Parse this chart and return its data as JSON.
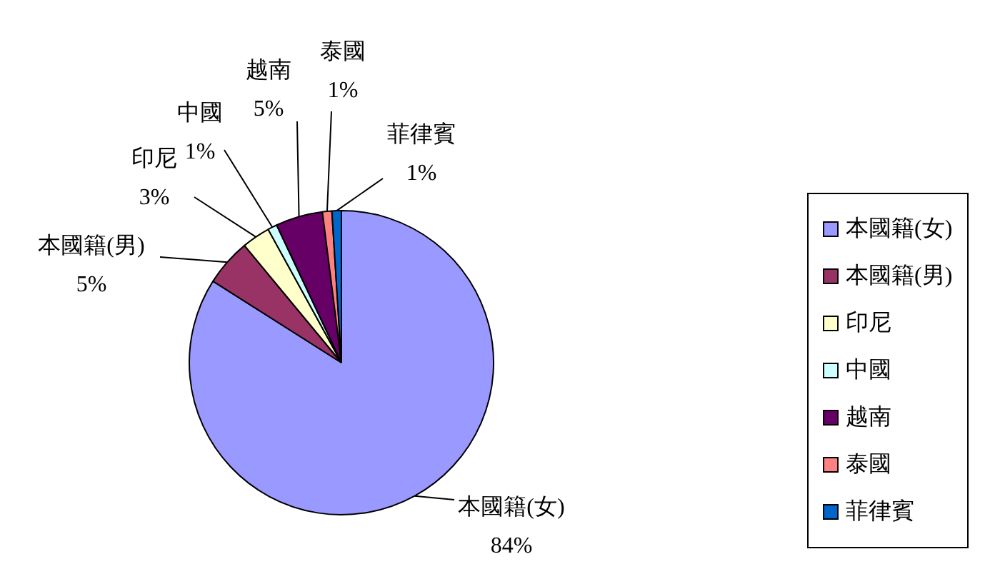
{
  "chart_data": {
    "type": "pie",
    "categories": [
      "本國籍(女)",
      "本國籍(男)",
      "印尼",
      "中國",
      "越南",
      "泰國",
      "菲律賓"
    ],
    "values": [
      84,
      5,
      3,
      1,
      5,
      1,
      1
    ],
    "value_labels": [
      "84%",
      "5%",
      "3%",
      "1%",
      "5%",
      "1%",
      "1%"
    ],
    "colors": [
      "#9999ff",
      "#993366",
      "#ffffcc",
      "#ccffff",
      "#660066",
      "#ff8080",
      "#0066cc"
    ],
    "legend": "right"
  }
}
